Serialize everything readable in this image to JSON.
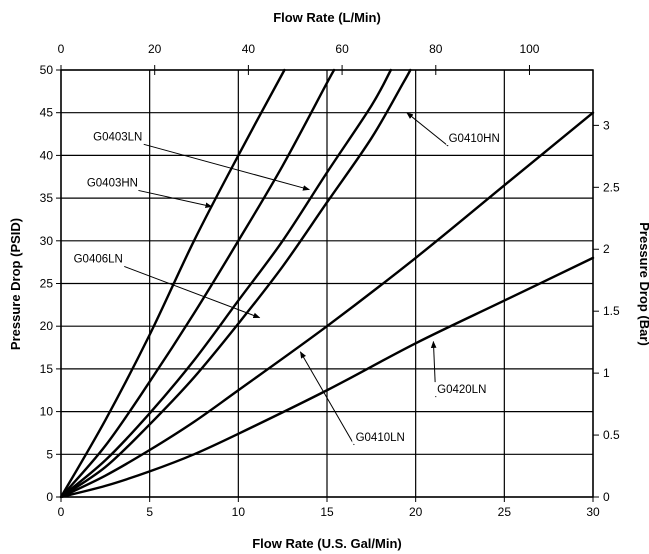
{
  "chart_data": {
    "type": "line",
    "title": "",
    "xlabel": "Flow Rate (U.S. Gal/Min)",
    "ylabel": "Pressure Drop (PSID)",
    "x2label": "Flow Rate (L/Min)",
    "y2label": "Pressure Drop (Bar)",
    "xlim": [
      0,
      30
    ],
    "ylim": [
      0,
      50
    ],
    "x2lim": [
      0,
      113.56
    ],
    "y2lim": [
      0,
      3.447
    ],
    "xticks": [
      "0",
      "5",
      "10",
      "15",
      "20",
      "25",
      "30"
    ],
    "yticks": [
      "0",
      "5",
      "10",
      "15",
      "20",
      "25",
      "30",
      "35",
      "40",
      "45",
      "50"
    ],
    "x2ticks": [
      "0",
      "20",
      "40",
      "60",
      "80",
      "100"
    ],
    "y2ticks": [
      "0",
      "0.5",
      "1",
      "1.5",
      "2",
      "2.5",
      "3"
    ],
    "grid": true,
    "series": [
      {
        "name": "G0403HN",
        "points": [
          [
            0,
            0
          ],
          [
            2.5,
            9
          ],
          [
            5,
            19
          ],
          [
            7.5,
            30
          ],
          [
            10,
            40
          ],
          [
            12.6,
            50
          ]
        ]
      },
      {
        "name": "G0403LN",
        "points": [
          [
            0,
            0
          ],
          [
            2.5,
            6
          ],
          [
            5,
            13.5
          ],
          [
            7.5,
            21.5
          ],
          [
            10,
            30
          ],
          [
            12.5,
            38.8
          ],
          [
            15,
            48.5
          ],
          [
            15.4,
            50
          ]
        ]
      },
      {
        "name": "G0406LN",
        "points": [
          [
            0,
            0
          ],
          [
            2.5,
            4.3
          ],
          [
            5,
            9.8
          ],
          [
            7.5,
            16
          ],
          [
            10,
            23
          ],
          [
            12.5,
            30
          ],
          [
            15,
            38
          ],
          [
            17.5,
            45.8
          ],
          [
            18.6,
            50
          ]
        ]
      },
      {
        "name": "G0410HN",
        "points": [
          [
            0,
            0
          ],
          [
            2.5,
            3.5
          ],
          [
            5,
            8.5
          ],
          [
            7.5,
            14
          ],
          [
            10,
            20.3
          ],
          [
            12.5,
            27
          ],
          [
            15,
            34.5
          ],
          [
            17.5,
            42
          ],
          [
            19.3,
            48.5
          ],
          [
            19.7,
            50
          ]
        ]
      },
      {
        "name": "G0410LN",
        "points": [
          [
            0,
            0
          ],
          [
            2.5,
            2.5
          ],
          [
            5,
            5.5
          ],
          [
            7.5,
            8.8
          ],
          [
            10,
            12.5
          ],
          [
            15,
            20
          ],
          [
            20,
            28
          ],
          [
            25,
            36.5
          ],
          [
            30,
            45
          ]
        ]
      },
      {
        "name": "G0420LN",
        "points": [
          [
            0,
            0
          ],
          [
            2.5,
            1.3
          ],
          [
            5,
            3
          ],
          [
            7.5,
            5
          ],
          [
            10,
            7.4
          ],
          [
            15,
            12.5
          ],
          [
            20,
            18
          ],
          [
            25,
            23
          ],
          [
            30,
            28
          ]
        ]
      }
    ],
    "annotations": [
      {
        "text": "G0403LN",
        "label_at": [
          3.2,
          42
        ],
        "arrow_to": [
          14,
          36
        ]
      },
      {
        "text": "G0403HN",
        "label_at": [
          2.9,
          36.6
        ],
        "arrow_to": [
          8.5,
          34
        ]
      },
      {
        "text": "G0406LN",
        "label_at": [
          2.1,
          27.7
        ],
        "arrow_to": [
          11.2,
          21
        ]
      },
      {
        "text": "G0410HN",
        "label_at": [
          23.3,
          41.8
        ],
        "arrow_to": [
          19.5,
          45
        ]
      },
      {
        "text": "G0410LN",
        "label_at": [
          18,
          6.8
        ],
        "arrow_to": [
          13.5,
          17
        ]
      },
      {
        "text": "G0420LN",
        "label_at": [
          22.6,
          12.4
        ],
        "arrow_to": [
          21,
          18.2
        ]
      }
    ]
  }
}
